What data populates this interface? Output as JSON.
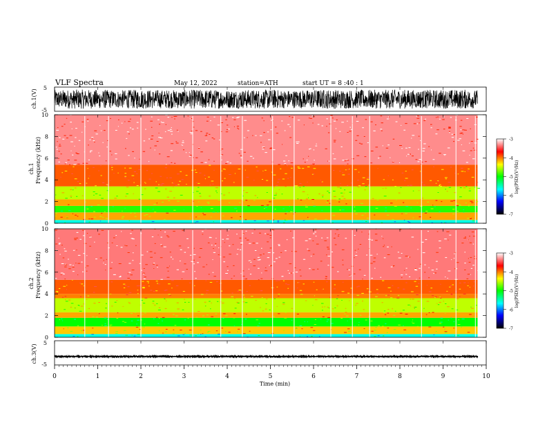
{
  "header": {
    "title": "VLF  Spectra",
    "date": "May 12, 2022",
    "station": "station=ATH",
    "start": "start  UT  =   8  :40 : 1"
  },
  "colors": {
    "bg": "#ffffff",
    "ink": "#000000",
    "spectrogram_ramp": [
      "#000000",
      "#0000ff",
      "#00ffff",
      "#00ff00",
      "#ffff00",
      "#ff0000",
      "#ffffff"
    ]
  },
  "chart_data": [
    {
      "id": "ch1-waveform",
      "type": "line",
      "ylabel": "ch.1(V)",
      "ylim": [
        -5,
        5
      ],
      "yticks": [
        "-5",
        "5"
      ],
      "xlim": [
        0,
        10
      ],
      "trace": "dense broadband noise, envelope approx -4 to 4 V",
      "x": [
        0,
        0.5,
        1,
        1.5,
        2,
        2.5,
        3,
        3.5,
        4,
        4.5,
        5,
        5.5,
        6,
        6.5,
        7,
        7.5,
        8,
        8.5,
        9,
        9.5,
        9.8
      ],
      "y_max": [
        3.8,
        4.0,
        3.9,
        3.7,
        4.0,
        3.8,
        3.9,
        4.0,
        3.8,
        3.9,
        4.0,
        3.7,
        3.9,
        4.0,
        3.8,
        3.9,
        4.0,
        3.8,
        3.9,
        4.0,
        3.8
      ],
      "y_min": [
        -3.8,
        -4.0,
        -3.9,
        -3.7,
        -4.0,
        -3.8,
        -3.9,
        -4.0,
        -3.8,
        -3.9,
        -4.0,
        -3.7,
        -3.9,
        -4.0,
        -3.8,
        -3.9,
        -4.0,
        -3.8,
        -3.9,
        -4.0,
        -3.8
      ]
    },
    {
      "id": "ch1-spectrogram",
      "type": "heatmap",
      "ylabel_top": "ch.1",
      "ylabel": "Frequency  (kHz)",
      "xlim": [
        0,
        10
      ],
      "ylim": [
        0,
        10
      ],
      "yticks": [
        "0",
        "2",
        "4",
        "6",
        "8",
        "10"
      ],
      "colorbar": {
        "label": "log(PSD)(V²/Hz)",
        "range": [
          -7,
          -3
        ],
        "ticks": [
          "-3",
          "-4",
          "-5",
          "-6",
          "-7"
        ]
      },
      "bands_logpsd": [
        {
          "f_khz": [
            0.0,
            0.3
          ],
          "level": -5.6
        },
        {
          "f_khz": [
            0.3,
            1.0
          ],
          "level": -4.1
        },
        {
          "f_khz": [
            1.0,
            1.6
          ],
          "level": -4.9
        },
        {
          "f_khz": [
            1.6,
            2.2
          ],
          "level": -4.1
        },
        {
          "f_khz": [
            2.2,
            3.4
          ],
          "level": -4.5
        },
        {
          "f_khz": [
            3.4,
            5.4
          ],
          "level": -3.9
        },
        {
          "f_khz": [
            5.4,
            10.0
          ],
          "level": -3.3
        }
      ],
      "impulsive_events_min": [
        0.7,
        1.25,
        2.0,
        3.2,
        3.85,
        4.35,
        5.05,
        5.55,
        6.4,
        6.9,
        7.3,
        8.5,
        9.3,
        9.75
      ]
    },
    {
      "id": "ch2-spectrogram",
      "type": "heatmap",
      "ylabel_top": "ch.2",
      "ylabel": "Frequency  (kHz)",
      "xlim": [
        0,
        10
      ],
      "ylim": [
        0,
        10
      ],
      "yticks": [
        "0",
        "2",
        "4",
        "6",
        "8",
        "10"
      ],
      "colorbar": {
        "label": "log(PSD)(V²/Hz)",
        "range": [
          -7,
          -3
        ],
        "ticks": [
          "-3",
          "-4",
          "-5",
          "-6",
          "-7"
        ]
      },
      "bands_logpsd": [
        {
          "f_khz": [
            0.0,
            0.3
          ],
          "level": -5.6
        },
        {
          "f_khz": [
            0.3,
            1.0
          ],
          "level": -4.2
        },
        {
          "f_khz": [
            1.0,
            1.8
          ],
          "level": -5.0
        },
        {
          "f_khz": [
            1.8,
            2.3
          ],
          "level": -4.1
        },
        {
          "f_khz": [
            2.3,
            3.6
          ],
          "level": -4.5
        },
        {
          "f_khz": [
            3.6,
            4.0
          ],
          "level": -4.0
        },
        {
          "f_khz": [
            4.0,
            5.3
          ],
          "level": -3.9
        },
        {
          "f_khz": [
            5.3,
            10.0
          ],
          "level": -3.35
        }
      ],
      "impulsive_events_min": [
        0.7,
        1.25,
        2.0,
        3.2,
        3.85,
        4.35,
        5.05,
        5.55,
        6.4,
        6.9,
        7.3,
        8.5,
        9.3,
        9.75
      ]
    },
    {
      "id": "ch3-waveform",
      "type": "line",
      "ylabel": "ch.3(V)",
      "ylim": [
        -5,
        5
      ],
      "yticks": [
        "-5",
        "5"
      ],
      "xlim": [
        0,
        10
      ],
      "xlabel": "Time  (min)",
      "xticks": [
        "0",
        "1",
        "2",
        "3",
        "4",
        "5",
        "6",
        "7",
        "8",
        "9",
        "10"
      ],
      "x": [
        0,
        1,
        2,
        3,
        4,
        5,
        6,
        7,
        8,
        9,
        9.8
      ],
      "y_mean": [
        -1.5,
        -1.5,
        -1.5,
        -1.5,
        -1.5,
        -1.5,
        -1.5,
        -1.5,
        -1.5,
        -1.5,
        -1.5
      ],
      "y_spread": [
        0.3,
        0.3,
        0.3,
        0.3,
        0.3,
        0.3,
        0.3,
        0.3,
        0.3,
        0.3,
        0.3
      ]
    }
  ]
}
